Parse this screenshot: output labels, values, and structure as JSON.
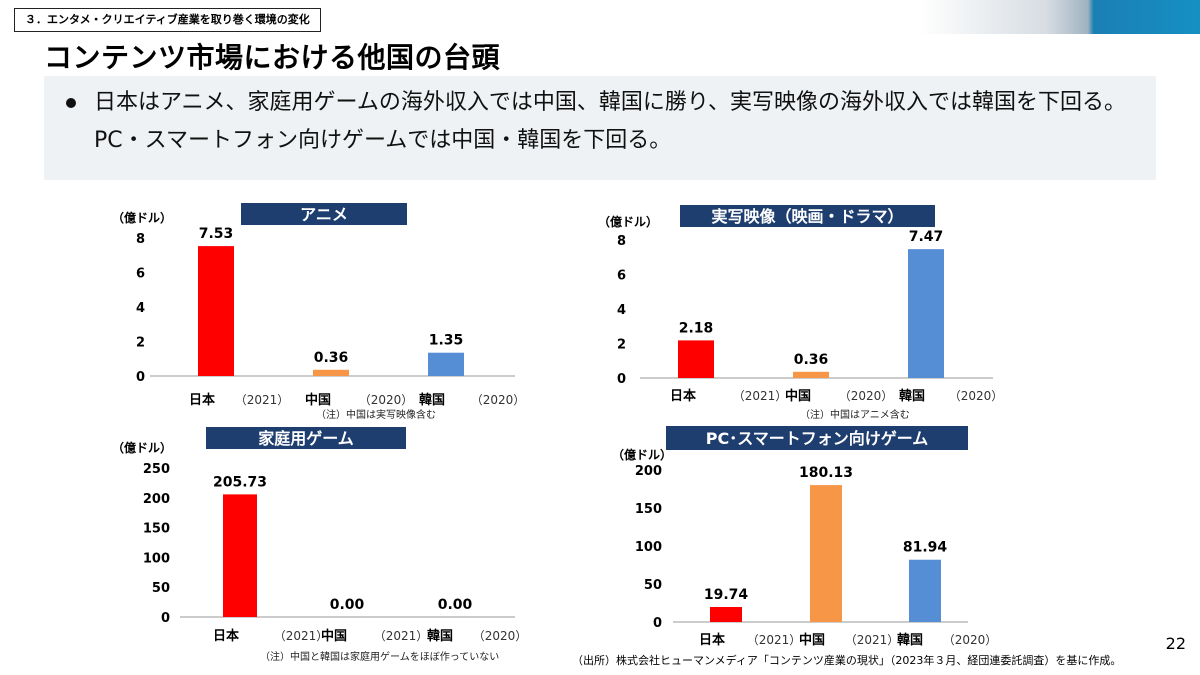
{
  "header": {
    "section": "３．エンタメ・クリエイティブ産業を取り巻く環境の変化",
    "title": "コンテンツ市場における他国の台頭"
  },
  "summary": "日本はアニメ、家庭用ゲームの海外収入では中国、韓国に勝り、実写映像の海外収入では韓国を下回る。PC・スマートフォン向けゲームでは中国・韓国を下回る。",
  "colors": {
    "japan": "#ff0000",
    "china": "#f79646",
    "korea": "#558ed5",
    "title_bar": "#1f3e70"
  },
  "chart_data": [
    {
      "type": "bar",
      "title": "アニメ",
      "ylabel": "（億ドル）",
      "categories": [
        "日本",
        "中国",
        "韓国"
      ],
      "years": [
        "（2021）",
        "（2020）",
        "（2020）"
      ],
      "values": [
        7.53,
        0.36,
        1.35
      ],
      "value_labels": [
        "7.53",
        "0.36",
        "1.35"
      ],
      "ylim": [
        0,
        8
      ],
      "yticks": [
        0,
        2,
        4,
        6,
        8
      ],
      "note": "（注）中国は実写映像含む"
    },
    {
      "type": "bar",
      "title": "実写映像（映画・ドラマ）",
      "ylabel": "（億ドル）",
      "categories": [
        "日本",
        "中国",
        "韓国"
      ],
      "years": [
        "（2021）",
        "（2020）",
        "（2020）"
      ],
      "values": [
        2.18,
        0.36,
        7.47
      ],
      "value_labels": [
        "2.18",
        "0.36",
        "7.47"
      ],
      "ylim": [
        0,
        8
      ],
      "yticks": [
        0,
        2,
        4,
        6,
        8
      ],
      "note": "（注）中国はアニメ含む"
    },
    {
      "type": "bar",
      "title": "家庭用ゲーム",
      "ylabel": "（億ドル）",
      "categories": [
        "日本",
        "中国",
        "韓国"
      ],
      "years": [
        "（2021）",
        "（2021）",
        "（2020）"
      ],
      "values": [
        205.73,
        0.0,
        0.0
      ],
      "value_labels": [
        "205.73",
        "0.00",
        "0.00"
      ],
      "ylim": [
        0,
        250
      ],
      "yticks": [
        0,
        50,
        100,
        150,
        200,
        250
      ],
      "note": "（注）中国と韓国は家庭用ゲームをほぼ作っていない"
    },
    {
      "type": "bar",
      "title": "PC･スマートフォン向けゲーム",
      "ylabel": "（億ドル）",
      "categories": [
        "日本",
        "中国",
        "韓国"
      ],
      "years": [
        "（2021）",
        "（2021）",
        "（2020）"
      ],
      "values": [
        19.74,
        180.13,
        81.94
      ],
      "value_labels": [
        "19.74",
        "180.13",
        "81.94"
      ],
      "ylim": [
        0,
        200
      ],
      "yticks": [
        0,
        50,
        100,
        150,
        200
      ],
      "note": ""
    }
  ],
  "source": "（出所）株式会社ヒューマンメディア「コンテンツ産業の現状」（2023年３月、経団連委託調査）を基に作成。",
  "page_number": "22"
}
